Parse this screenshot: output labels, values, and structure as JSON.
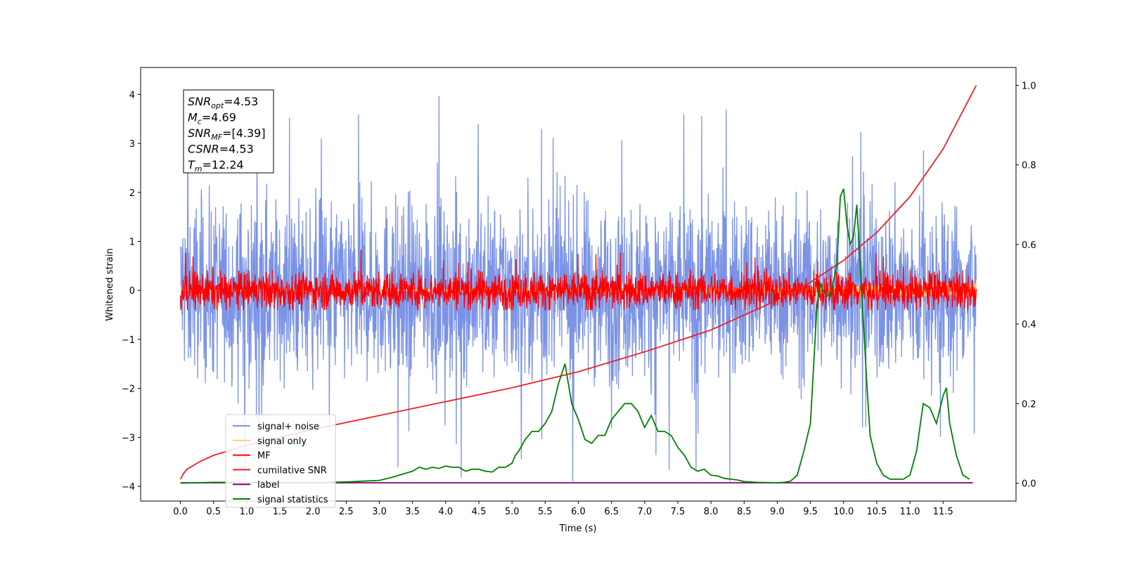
{
  "chart_data": {
    "type": "line",
    "xlabel": "Time (s)",
    "ylabel": "Whitened strain",
    "xlim": [
      -0.6,
      12.6
    ],
    "ylim": [
      -4.3,
      4.55
    ],
    "y2lim": [
      -0.045,
      1.045
    ],
    "x_ticks": [
      "0.0",
      "0.5",
      "1.0",
      "1.5",
      "2.0",
      "2.5",
      "3.0",
      "3.5",
      "4.0",
      "4.5",
      "5.0",
      "5.5",
      "6.0",
      "6.5",
      "7.0",
      "7.5",
      "8.0",
      "8.5",
      "9.0",
      "9.5",
      "10.0",
      "10.5",
      "11.0",
      "11.5"
    ],
    "y_ticks": [
      "4",
      "3",
      "2",
      "1",
      "0",
      "−1",
      "−2",
      "−3",
      "−4"
    ],
    "y2_ticks": [
      "1.0",
      "0.8",
      "0.6",
      "0.4",
      "0.2",
      "0.0"
    ],
    "info_box": [
      {
        "sym": "SNR",
        "sub": "opt",
        "rest": "=4.53"
      },
      {
        "sym": "M",
        "sub": "c",
        "rest": "=4.69"
      },
      {
        "sym": "SNR",
        "sub": "MF",
        "rest": "=[4.39]"
      },
      {
        "sym": "CSNR",
        "sub": "",
        "rest": "=4.53"
      },
      {
        "sym": "T",
        "sub": "m",
        "rest": "=12.24"
      }
    ],
    "legend_position": "lower left",
    "series": [
      {
        "name": "signal+ noise",
        "color": "#7b93e6",
        "axis": "left",
        "kind": "noise",
        "x_range": [
          0,
          12.0
        ],
        "amplitude": 1.2,
        "spike_max": 4.15,
        "spike_min": -3.9
      },
      {
        "name": "signal only",
        "color": "#ffc97a",
        "axis": "left",
        "kind": "chirp",
        "x_range": [
          0,
          12.0
        ],
        "start_amplitude": 0.01,
        "end_amplitude": 0.15
      },
      {
        "name": "MF",
        "color": "#ff0000",
        "axis": "left",
        "kind": "noise",
        "x_range": [
          0,
          12.0
        ],
        "amplitude": 0.25,
        "spike_max": 1.0,
        "spike_min": -0.4
      },
      {
        "name": "cumilative SNR",
        "color": "#ee2222",
        "axis": "right",
        "kind": "curve",
        "x": [
          0,
          0.05,
          0.1,
          0.3,
          0.5,
          1.0,
          1.5,
          2.0,
          3.0,
          4.0,
          5.0,
          6.0,
          7.0,
          8.0,
          9.0,
          9.5,
          10.0,
          10.5,
          11.0,
          11.5,
          12.0
        ],
        "y": [
          0.01,
          0.025,
          0.035,
          0.055,
          0.07,
          0.095,
          0.115,
          0.135,
          0.17,
          0.205,
          0.24,
          0.28,
          0.33,
          0.385,
          0.46,
          0.505,
          0.56,
          0.63,
          0.72,
          0.84,
          1.0
        ]
      },
      {
        "name": "label",
        "color": "#800080",
        "axis": "right",
        "kind": "curve",
        "x": [
          0,
          11.95
        ],
        "y": [
          0.001,
          0.001
        ]
      },
      {
        "name": "signal statistics",
        "color": "#008000",
        "axis": "right",
        "kind": "curve",
        "x": [
          0,
          0.5,
          1.0,
          1.5,
          2.0,
          2.5,
          3.0,
          3.2,
          3.4,
          3.5,
          3.6,
          3.7,
          3.8,
          3.9,
          4.0,
          4.1,
          4.2,
          4.3,
          4.4,
          4.5,
          4.6,
          4.7,
          4.8,
          4.9,
          5.0,
          5.05,
          5.1,
          5.2,
          5.3,
          5.4,
          5.5,
          5.6,
          5.7,
          5.8,
          5.9,
          6.0,
          6.1,
          6.2,
          6.3,
          6.4,
          6.5,
          6.6,
          6.7,
          6.8,
          6.9,
          7.0,
          7.1,
          7.2,
          7.3,
          7.4,
          7.5,
          7.6,
          7.7,
          7.8,
          7.9,
          8.0,
          8.1,
          8.2,
          8.3,
          8.4,
          8.5,
          8.7,
          9.0,
          9.1,
          9.2,
          9.3,
          9.4,
          9.5,
          9.55,
          9.6,
          9.65,
          9.7,
          9.8,
          9.9,
          9.95,
          10.0,
          10.05,
          10.1,
          10.15,
          10.2,
          10.25,
          10.3,
          10.35,
          10.4,
          10.5,
          10.6,
          10.7,
          10.8,
          10.9,
          11.0,
          11.1,
          11.2,
          11.3,
          11.4,
          11.5,
          11.55,
          11.6,
          11.7,
          11.8,
          11.9
        ],
        "y": [
          0.0,
          0.002,
          0.002,
          0.001,
          0.001,
          0.003,
          0.007,
          0.015,
          0.025,
          0.03,
          0.04,
          0.035,
          0.04,
          0.037,
          0.043,
          0.04,
          0.04,
          0.03,
          0.035,
          0.035,
          0.03,
          0.028,
          0.04,
          0.04,
          0.05,
          0.07,
          0.08,
          0.11,
          0.13,
          0.13,
          0.15,
          0.18,
          0.25,
          0.3,
          0.2,
          0.16,
          0.11,
          0.1,
          0.12,
          0.12,
          0.16,
          0.18,
          0.2,
          0.2,
          0.18,
          0.14,
          0.17,
          0.13,
          0.13,
          0.12,
          0.09,
          0.07,
          0.04,
          0.03,
          0.035,
          0.02,
          0.018,
          0.012,
          0.01,
          0.008,
          0.004,
          0.002,
          0.001,
          0.002,
          0.005,
          0.02,
          0.08,
          0.15,
          0.3,
          0.45,
          0.5,
          0.48,
          0.47,
          0.55,
          0.72,
          0.74,
          0.65,
          0.6,
          0.62,
          0.7,
          0.55,
          0.4,
          0.25,
          0.12,
          0.05,
          0.02,
          0.01,
          0.01,
          0.01,
          0.02,
          0.08,
          0.2,
          0.19,
          0.15,
          0.22,
          0.24,
          0.15,
          0.07,
          0.02,
          0.01
        ]
      }
    ]
  }
}
